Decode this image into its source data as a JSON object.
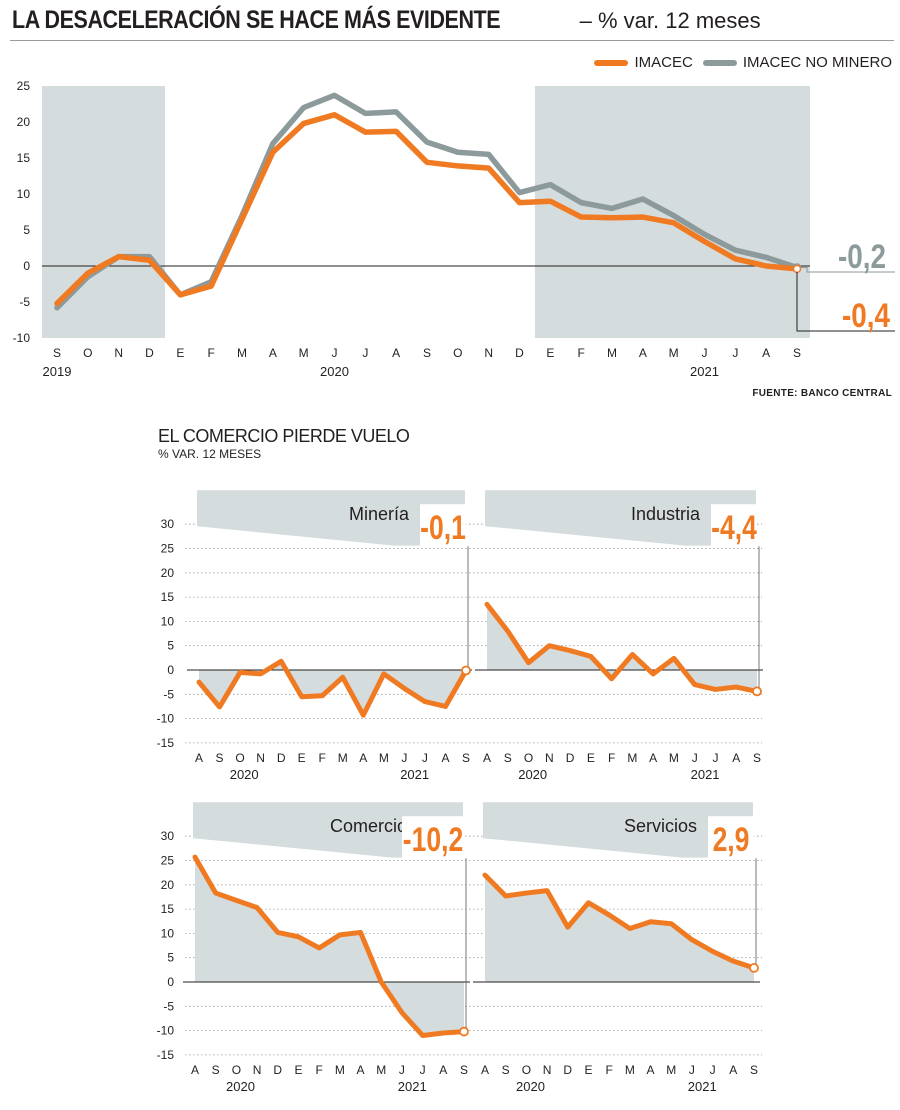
{
  "header": {
    "title": "LA DESACELERACIÓN SE HACE MÁS EVIDENTE",
    "subtitle": "– % var. 12 meses"
  },
  "legend": {
    "imacec": "IMACEC",
    "no_minero": "IMACEC NO MINERO"
  },
  "colors": {
    "orange": "#f07a22",
    "gray": "#8c9a9b",
    "band": "#d5dcdd"
  },
  "source": "FUENTE: BANCO CENTRAL",
  "section2": {
    "title": "EL COMERCIO PIERDE VUELO",
    "subtitle": "% VAR. 12 MESES"
  },
  "chart_data": [
    {
      "type": "line",
      "x": [
        "S",
        "O",
        "N",
        "D",
        "E",
        "F",
        "M",
        "A",
        "M",
        "J",
        "J",
        "A",
        "S",
        "O",
        "N",
        "D",
        "E",
        "F",
        "M",
        "A",
        "M",
        "J",
        "J",
        "A",
        "S"
      ],
      "year_labels": [
        {
          "text": "2019",
          "at": 0
        },
        {
          "text": "2020",
          "at": 9
        },
        {
          "text": "2021",
          "at": 21
        }
      ],
      "series": [
        {
          "name": "IMACEC NO MINERO",
          "values": [
            -5.8,
            -1.5,
            1.3,
            1.3,
            -4.0,
            -2.2,
            7.0,
            17.0,
            22.0,
            23.7,
            21.2,
            21.4,
            17.2,
            15.8,
            15.5,
            10.2,
            11.3,
            8.8,
            8.0,
            9.3,
            7.0,
            4.4,
            2.2,
            1.2,
            -0.2
          ]
        },
        {
          "name": "IMACEC",
          "values": [
            -5.2,
            -1.0,
            1.3,
            0.8,
            -4.0,
            -2.8,
            6.5,
            15.8,
            19.8,
            21.0,
            18.6,
            18.7,
            14.4,
            13.9,
            13.6,
            8.8,
            9.0,
            6.8,
            6.7,
            6.8,
            6.0,
            3.4,
            1.0,
            0.0,
            -0.4
          ]
        }
      ],
      "ylim": [
        -10,
        25
      ],
      "yticks": [
        -10,
        -5,
        0,
        5,
        10,
        15,
        20,
        25
      ],
      "shaded_ranges": [
        [
          0,
          3
        ],
        [
          16,
          24
        ]
      ],
      "end_labels": {
        "no_minero": "-0,2",
        "imacec": "-0,4"
      }
    },
    {
      "type": "line",
      "name": "Minería",
      "end_label": "-0,1",
      "x": [
        "A",
        "S",
        "O",
        "N",
        "D",
        "E",
        "F",
        "M",
        "A",
        "M",
        "J",
        "J",
        "A",
        "S"
      ],
      "values": [
        -2.5,
        -7.6,
        -0.5,
        -0.8,
        1.8,
        -5.5,
        -5.3,
        -1.5,
        -9.3,
        -0.8,
        -3.8,
        -6.5,
        -7.5,
        -0.1
      ],
      "ylim": [
        -15,
        30
      ],
      "fill": "to_zero"
    },
    {
      "type": "line",
      "name": "Industria",
      "end_label": "-4,4",
      "x": [
        "A",
        "S",
        "O",
        "N",
        "D",
        "E",
        "F",
        "M",
        "A",
        "M",
        "J",
        "J",
        "A",
        "S"
      ],
      "values": [
        13.5,
        8.0,
        1.5,
        5.0,
        4.0,
        2.8,
        -1.8,
        3.2,
        -0.8,
        2.4,
        -3.0,
        -4.0,
        -3.5,
        -4.4
      ],
      "ylim": [
        -15,
        30
      ],
      "fill": "to_zero"
    },
    {
      "type": "line",
      "name": "Comercio",
      "end_label": "-10,2",
      "x": [
        "A",
        "S",
        "O",
        "N",
        "D",
        "E",
        "F",
        "M",
        "A",
        "M",
        "J",
        "J",
        "A",
        "S"
      ],
      "values": [
        25.7,
        18.3,
        16.8,
        15.3,
        10.2,
        9.3,
        7.0,
        9.7,
        10.2,
        0.0,
        -6.3,
        -11.0,
        -10.5,
        -10.2
      ],
      "ylim": [
        -15,
        30
      ],
      "fill": "to_zero"
    },
    {
      "type": "line",
      "name": "Servicios",
      "end_label": "2,9",
      "x": [
        "A",
        "S",
        "O",
        "N",
        "D",
        "E",
        "F",
        "M",
        "A",
        "M",
        "J",
        "J",
        "A",
        "S"
      ],
      "values": [
        22.0,
        17.7,
        18.3,
        18.8,
        11.3,
        16.3,
        13.8,
        11.0,
        12.4,
        12.0,
        8.7,
        6.3,
        4.3,
        2.9
      ],
      "ylim": [
        -15,
        30
      ],
      "fill": "to_zero"
    }
  ],
  "small_year_labels": [
    "2020",
    "2021"
  ]
}
